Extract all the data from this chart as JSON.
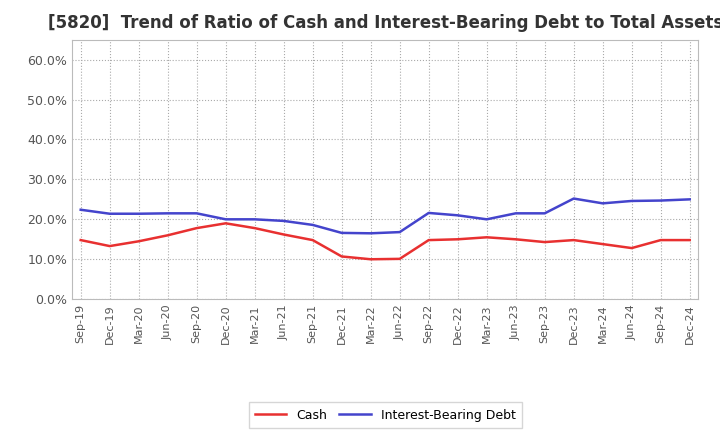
{
  "title": "[5820]  Trend of Ratio of Cash and Interest-Bearing Debt to Total Assets",
  "x_labels": [
    "Sep-19",
    "Dec-19",
    "Mar-20",
    "Jun-20",
    "Sep-20",
    "Dec-20",
    "Mar-21",
    "Jun-21",
    "Sep-21",
    "Dec-21",
    "Mar-22",
    "Jun-22",
    "Sep-22",
    "Dec-22",
    "Mar-23",
    "Jun-23",
    "Sep-23",
    "Dec-23",
    "Mar-24",
    "Jun-24",
    "Sep-24",
    "Dec-24"
  ],
  "cash": [
    0.148,
    0.133,
    0.145,
    0.16,
    0.178,
    0.19,
    0.178,
    0.162,
    0.148,
    0.107,
    0.1,
    0.101,
    0.148,
    0.15,
    0.155,
    0.15,
    0.143,
    0.148,
    0.138,
    0.128,
    0.148,
    0.148
  ],
  "interest_bearing_debt": [
    0.224,
    0.214,
    0.214,
    0.215,
    0.215,
    0.2,
    0.2,
    0.196,
    0.186,
    0.166,
    0.165,
    0.168,
    0.216,
    0.21,
    0.2,
    0.215,
    0.215,
    0.252,
    0.24,
    0.246,
    0.247,
    0.25
  ],
  "cash_color": "#e83030",
  "debt_color": "#4444cc",
  "background_color": "#ffffff",
  "grid_color": "#aaaaaa",
  "ylim_min": 0.0,
  "ylim_max": 0.65,
  "yticks": [
    0.0,
    0.1,
    0.2,
    0.3,
    0.4,
    0.5,
    0.6
  ],
  "legend_cash": "Cash",
  "legend_debt": "Interest-Bearing Debt",
  "title_fontsize": 12,
  "line_width": 1.8
}
